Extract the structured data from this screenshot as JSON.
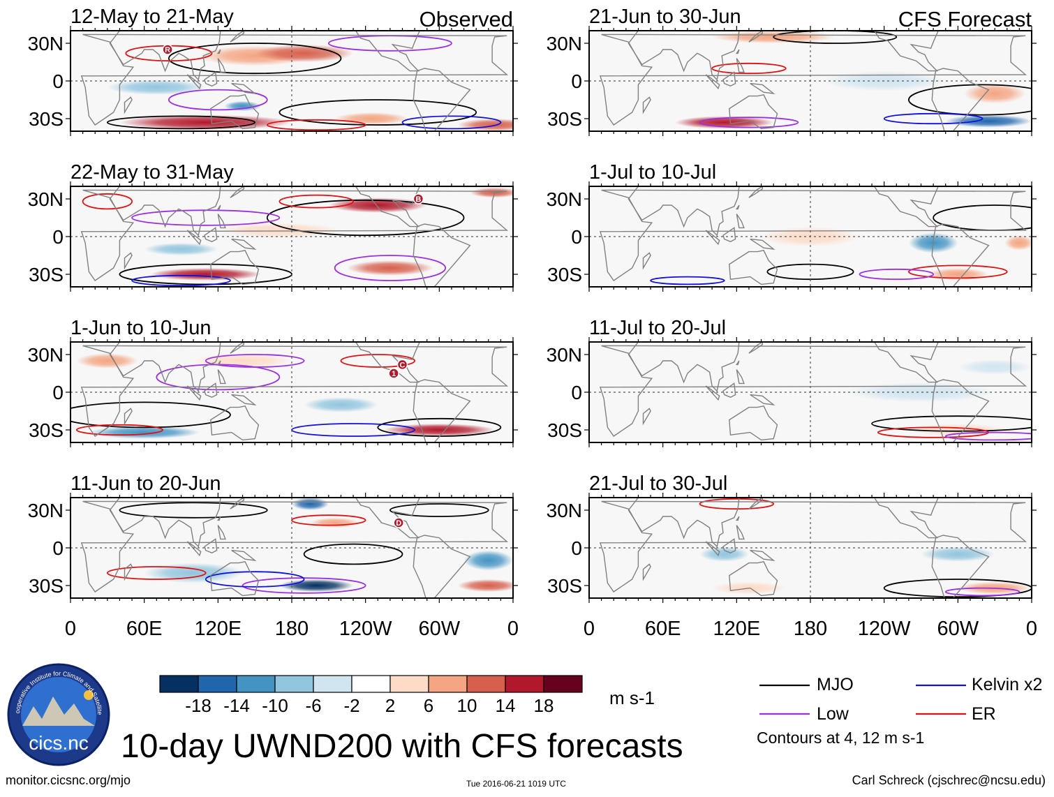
{
  "title": "10-day UWND200 with CFS forecasts",
  "website": "monitor.cicsnc.org/mjo",
  "timestamp": "Tue 2016-06-21 1019 UTC",
  "author": "Carl Schreck (cjschrec@ncsu.edu)",
  "logo": {
    "arc_text": "Cooperative Institute for Climate and Satellites",
    "name": "cics.nc"
  },
  "column_headers": {
    "observed": "Observed",
    "forecast": "CFS Forecast"
  },
  "x_tick_labels": [
    "0",
    "60E",
    "120E",
    "180",
    "120W",
    "60W",
    "0"
  ],
  "y_tick_labels": [
    "30N",
    "0",
    "30S"
  ],
  "panels_observed": [
    {
      "period": "12-May to 21-May",
      "markers": [
        "R"
      ]
    },
    {
      "period": "22-May to 31-May",
      "markers": [
        "B"
      ]
    },
    {
      "period": "1-Jun to 10-Jun",
      "markers": [
        "1",
        "C"
      ]
    },
    {
      "period": "11-Jun to 20-Jun",
      "markers": [
        "D"
      ]
    }
  ],
  "panels_forecast": [
    {
      "period": "21-Jun to 30-Jun"
    },
    {
      "period": "1-Jul to 10-Jul"
    },
    {
      "period": "11-Jul to 20-Jul"
    },
    {
      "period": "21-Jul to 30-Jul"
    }
  ],
  "colorbar": {
    "units": "m s-1",
    "tick_labels": [
      "-18",
      "-14",
      "-10",
      "-6",
      "-2",
      "2",
      "6",
      "10",
      "14",
      "18"
    ],
    "colors": [
      "#053061",
      "#2166ac",
      "#4393c3",
      "#92c5de",
      "#d1e5f0",
      "#ffffff",
      "#fddbc7",
      "#f4a582",
      "#d6604d",
      "#b2182b",
      "#67001f"
    ]
  },
  "legend": {
    "items": [
      {
        "label": "MJO",
        "color": "#000000"
      },
      {
        "label": "Kelvin x2",
        "color": "#1010e0"
      },
      {
        "label": "Low",
        "color": "#9b30e0"
      },
      {
        "label": "ER",
        "color": "#e01010"
      }
    ],
    "contour_note": "Contours at 4, 12 m s-1"
  },
  "chart_data": {
    "type": "heatmap",
    "variable": "200-hPa zonal wind anomaly (10-day means)",
    "units": "m s-1",
    "x_range_deg_east": [
      0,
      360
    ],
    "y_range_deg_lat": [
      -40,
      40
    ],
    "color_levels": [
      -18,
      -14,
      -10,
      -6,
      -2,
      2,
      6,
      10,
      14,
      18
    ],
    "contour_levels": [
      4,
      12
    ],
    "filters": [
      "MJO",
      "Kelvin x2",
      "Low",
      "ER"
    ],
    "anomaly_features": [
      {
        "panel": "12-May to 21-May",
        "lon": 150,
        "lat": 20,
        "lon_w": 45,
        "lat_w": 8,
        "v": 10
      },
      {
        "panel": "12-May to 21-May",
        "lon": 190,
        "lat": 22,
        "lon_w": 40,
        "lat_w": 7,
        "v": 14
      },
      {
        "panel": "12-May to 21-May",
        "lon": 110,
        "lat": -33,
        "lon_w": 70,
        "lat_w": 6,
        "v": 16
      },
      {
        "panel": "12-May to 21-May",
        "lon": 345,
        "lat": -35,
        "lon_w": 30,
        "lat_w": 5,
        "v": 14
      },
      {
        "panel": "12-May to 21-May",
        "lon": 140,
        "lat": -20,
        "lon_w": 15,
        "lat_w": 4,
        "v": -12
      },
      {
        "panel": "12-May to 21-May",
        "lon": 245,
        "lat": -30,
        "lon_w": 30,
        "lat_w": 5,
        "v": 10
      },
      {
        "panel": "12-May to 21-May",
        "lon": 70,
        "lat": -5,
        "lon_w": 40,
        "lat_w": 6,
        "v": -6
      },
      {
        "panel": "22-May to 31-May",
        "lon": 250,
        "lat": 25,
        "lon_w": 40,
        "lat_w": 6,
        "v": 16
      },
      {
        "panel": "22-May to 31-May",
        "lon": 110,
        "lat": -30,
        "lon_w": 45,
        "lat_w": 5,
        "v": 16
      },
      {
        "panel": "22-May to 31-May",
        "lon": 260,
        "lat": -25,
        "lon_w": 35,
        "lat_w": 6,
        "v": 12
      },
      {
        "panel": "22-May to 31-May",
        "lon": 345,
        "lat": 35,
        "lon_w": 20,
        "lat_w": 4,
        "v": 14
      },
      {
        "panel": "22-May to 31-May",
        "lon": 170,
        "lat": 5,
        "lon_w": 50,
        "lat_w": 6,
        "v": 6
      },
      {
        "panel": "22-May to 31-May",
        "lon": 90,
        "lat": -10,
        "lon_w": 30,
        "lat_w": 5,
        "v": -6
      },
      {
        "panel": "1-Jun to 10-Jun",
        "lon": 300,
        "lat": -30,
        "lon_w": 45,
        "lat_w": 5,
        "v": 18
      },
      {
        "panel": "1-Jun to 10-Jun",
        "lon": 60,
        "lat": -32,
        "lon_w": 45,
        "lat_w": 5,
        "v": -10
      },
      {
        "panel": "1-Jun to 10-Jun",
        "lon": 30,
        "lat": 25,
        "lon_w": 25,
        "lat_w": 6,
        "v": 8
      },
      {
        "panel": "1-Jun to 10-Jun",
        "lon": 140,
        "lat": 25,
        "lon_w": 40,
        "lat_w": 6,
        "v": 6
      },
      {
        "panel": "1-Jun to 10-Jun",
        "lon": 220,
        "lat": -10,
        "lon_w": 30,
        "lat_w": 6,
        "v": -6
      },
      {
        "panel": "11-Jun to 20-Jun",
        "lon": 200,
        "lat": -30,
        "lon_w": 30,
        "lat_w": 5,
        "v": -18
      },
      {
        "panel": "11-Jun to 20-Jun",
        "lon": 195,
        "lat": 35,
        "lon_w": 15,
        "lat_w": 5,
        "v": -16
      },
      {
        "panel": "11-Jun to 20-Jun",
        "lon": 340,
        "lat": -10,
        "lon_w": 20,
        "lat_w": 8,
        "v": -12
      },
      {
        "panel": "11-Jun to 20-Jun",
        "lon": 215,
        "lat": 20,
        "lon_w": 20,
        "lat_w": 4,
        "v": 10
      },
      {
        "panel": "11-Jun to 20-Jun",
        "lon": 340,
        "lat": -30,
        "lon_w": 25,
        "lat_w": 5,
        "v": 14
      },
      {
        "panel": "11-Jun to 20-Jun",
        "lon": 100,
        "lat": -20,
        "lon_w": 40,
        "lat_w": 8,
        "v": -6
      },
      {
        "panel": "21-Jun to 30-Jun",
        "lon": 110,
        "lat": -33,
        "lon_w": 40,
        "lat_w": 5,
        "v": 16
      },
      {
        "panel": "21-Jun to 30-Jun",
        "lon": 325,
        "lat": -32,
        "lon_w": 35,
        "lat_w": 5,
        "v": -14
      },
      {
        "panel": "21-Jun to 30-Jun",
        "lon": 330,
        "lat": -10,
        "lon_w": 25,
        "lat_w": 8,
        "v": 8
      },
      {
        "panel": "21-Jun to 30-Jun",
        "lon": 150,
        "lat": 35,
        "lon_w": 50,
        "lat_w": 5,
        "v": 8
      },
      {
        "panel": "21-Jun to 30-Jun",
        "lon": 240,
        "lat": 0,
        "lon_w": 50,
        "lat_w": 8,
        "v": -4
      },
      {
        "panel": "1-Jul to 10-Jul",
        "lon": 280,
        "lat": -5,
        "lon_w": 20,
        "lat_w": 8,
        "v": -10
      },
      {
        "panel": "1-Jul to 10-Jul",
        "lon": 300,
        "lat": -30,
        "lon_w": 25,
        "lat_w": 5,
        "v": 10
      },
      {
        "panel": "1-Jul to 10-Jul",
        "lon": 350,
        "lat": -5,
        "lon_w": 12,
        "lat_w": 6,
        "v": 8
      },
      {
        "panel": "1-Jul to 10-Jul",
        "lon": 180,
        "lat": 0,
        "lon_w": 40,
        "lat_w": 8,
        "v": 4
      },
      {
        "panel": "11-Jul to 20-Jul",
        "lon": 300,
        "lat": -30,
        "lon_w": 40,
        "lat_w": 5,
        "v": 4
      },
      {
        "panel": "11-Jul to 20-Jul",
        "lon": 270,
        "lat": 0,
        "lon_w": 60,
        "lat_w": 8,
        "v": -4
      },
      {
        "panel": "11-Jul to 20-Jul",
        "lon": 330,
        "lat": 20,
        "lon_w": 30,
        "lat_w": 6,
        "v": -4
      },
      {
        "panel": "21-Jul to 30-Jul",
        "lon": 330,
        "lat": -32,
        "lon_w": 30,
        "lat_w": 5,
        "v": 10
      },
      {
        "panel": "21-Jul to 30-Jul",
        "lon": 300,
        "lat": -5,
        "lon_w": 30,
        "lat_w": 6,
        "v": -8
      },
      {
        "panel": "21-Jul to 30-Jul",
        "lon": 110,
        "lat": -5,
        "lon_w": 20,
        "lat_w": 6,
        "v": -6
      },
      {
        "panel": "21-Jul to 30-Jul",
        "lon": 130,
        "lat": -32,
        "lon_w": 30,
        "lat_w": 5,
        "v": 6
      }
    ]
  }
}
